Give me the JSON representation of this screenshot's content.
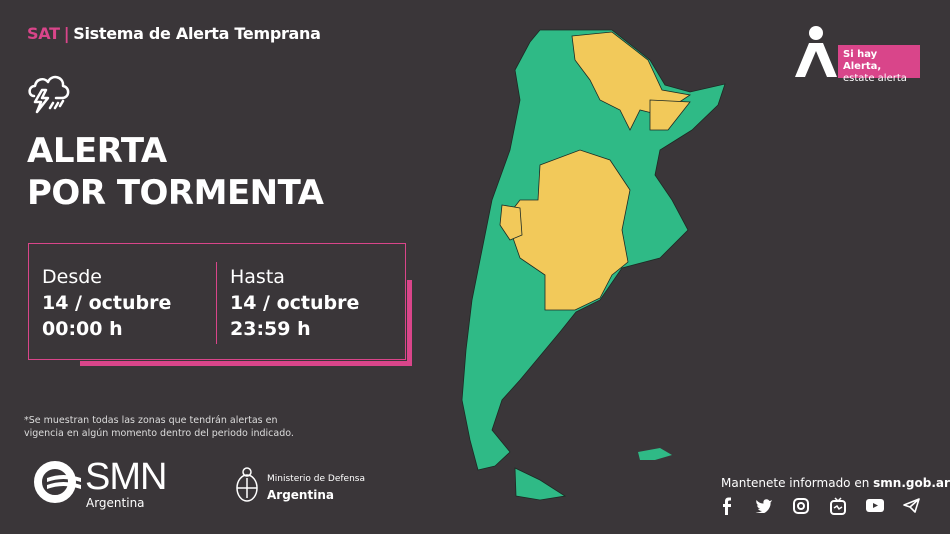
{
  "header": {
    "brand": "SAT",
    "separator": "|",
    "title": "Sistema de Alerta Temprana"
  },
  "alert": {
    "icon": "storm-cloud-icon",
    "title_line1": "ALERTA",
    "title_line2": "POR TORMENTA"
  },
  "period": {
    "from": {
      "label": "Desde",
      "date": "14 / octubre",
      "time": "00:00 h"
    },
    "to": {
      "label": "Hasta",
      "date": "14 / octubre",
      "time": "23:59 h"
    }
  },
  "note": {
    "line1": "*Se muestran todas las zonas que tendrán alertas en",
    "line2": "vigencia en algún momento dentro del periodo indicado."
  },
  "badge": {
    "line1": "Si hay Alerta,",
    "line2": "estate alerta"
  },
  "smn": {
    "name": "SMN",
    "country": "Argentina"
  },
  "ministry": {
    "line1": "Ministerio de Defensa",
    "line2": "Argentina"
  },
  "footer": {
    "info_prefix": "Mantenete informado en ",
    "info_site": "smn.gob.ar"
  },
  "social": [
    "facebook-icon",
    "twitter-icon",
    "instagram-icon",
    "igtv-icon",
    "youtube-icon",
    "telegram-icon"
  ],
  "colors": {
    "background": "#3a3639",
    "accent": "#d9458a",
    "no_alert": "#2fba86",
    "yellow_alert": "#f2c95a"
  },
  "map": {
    "legend_levels": [
      "green",
      "yellow"
    ]
  }
}
